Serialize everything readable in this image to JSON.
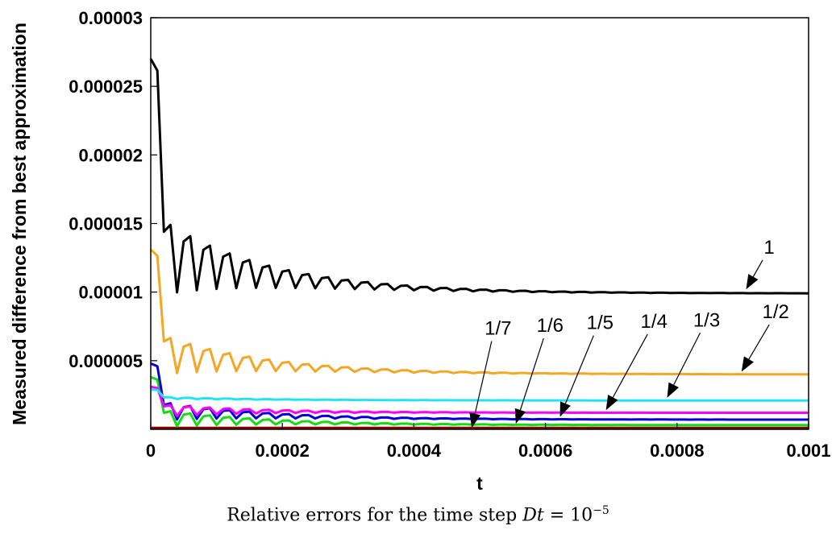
{
  "chart_data": {
    "type": "line",
    "title": "",
    "xlabel": "t",
    "ylabel": "Measured difference from best approximation",
    "xlim": [
      0,
      0.001
    ],
    "ylim": [
      0,
      3e-05
    ],
    "x_ticks": [
      "0",
      "0.0002",
      "0.0004",
      "0.0006",
      "0.0008",
      "0.001"
    ],
    "y_ticks": [
      "0.000005",
      "0.00001",
      "0.000015",
      "0.00002",
      "0.000025",
      "0.00003"
    ],
    "grid": false,
    "legend": "none",
    "series": [
      {
        "name": "1",
        "color": "#000000",
        "start": 2.7e-05,
        "amp": 1.25e-05,
        "end": 9.9e-06
      },
      {
        "name": "1/2",
        "color": "#f5a623",
        "start": 1.31e-05,
        "amp": 6.5e-06,
        "end": 4e-06
      },
      {
        "name": "1/3",
        "color": "#22e4f0",
        "start": 2.9e-06,
        "amp": 3e-07,
        "end": 2.1e-06
      },
      {
        "name": "1/4",
        "color": "#ff00ff",
        "start": 3.1e-06,
        "amp": 2e-06,
        "end": 1.2e-06
      },
      {
        "name": "1/5",
        "color": "#0000dd",
        "start": 4.8e-06,
        "amp": 3e-06,
        "end": 7e-07
      },
      {
        "name": "1/6",
        "color": "#11dd11",
        "start": 3.8e-06,
        "amp": 2.8e-06,
        "end": 3e-07
      },
      {
        "name": "1/7",
        "color": "#8b0000",
        "start": 1e-07,
        "amp": 0.0,
        "end": 1e-07
      }
    ],
    "annotations": [
      {
        "text": "1",
        "x": 0.00094,
        "y": 1.28e-05,
        "target_x": 0.000905,
        "target_y": 1.02e-05
      },
      {
        "text": "1/2",
        "x": 0.00095,
        "y": 8.1e-06,
        "target_x": 0.000898,
        "target_y": 4.2e-06
      },
      {
        "text": "1/3",
        "x": 0.000845,
        "y": 7.5e-06,
        "target_x": 0.000785,
        "target_y": 2.3e-06
      },
      {
        "text": "1/4",
        "x": 0.000765,
        "y": 7.4e-06,
        "target_x": 0.000692,
        "target_y": 1.4e-06
      },
      {
        "text": "1/5",
        "x": 0.000683,
        "y": 7.3e-06,
        "target_x": 0.000622,
        "target_y": 9e-07
      },
      {
        "text": "1/6",
        "x": 0.000607,
        "y": 7.1e-06,
        "target_x": 0.000555,
        "target_y": 4e-07
      },
      {
        "text": "1/7",
        "x": 0.000528,
        "y": 6.9e-06,
        "target_x": 0.000488,
        "target_y": 1e-07
      }
    ]
  },
  "caption": {
    "text": "Relative errors for the time step",
    "var": "Dt",
    "eq": " = 10",
    "exp": "−5"
  }
}
